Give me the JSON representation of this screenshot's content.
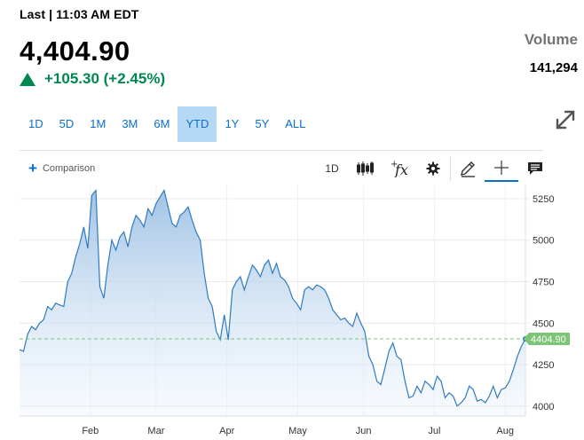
{
  "header": {
    "last_label": "Last | 11:03 AM EDT",
    "price": "4,404.90",
    "change": "+105.30 (+2.45%)",
    "volume_label": "Volume",
    "volume_value": "141,294"
  },
  "ranges": [
    {
      "label": "1D",
      "active": false
    },
    {
      "label": "5D",
      "active": false
    },
    {
      "label": "1M",
      "active": false
    },
    {
      "label": "3M",
      "active": false
    },
    {
      "label": "6M",
      "active": false
    },
    {
      "label": "YTD",
      "active": true
    },
    {
      "label": "1Y",
      "active": false
    },
    {
      "label": "5Y",
      "active": false
    },
    {
      "label": "ALL",
      "active": false
    }
  ],
  "toolbar": {
    "comparison_label": "Comparison",
    "interval_label": "1D",
    "icons": [
      "candlestick-icon",
      "function-icon",
      "gear-icon",
      "pencil-icon",
      "crosshair-icon",
      "comment-icon"
    ]
  },
  "colors": {
    "accent": "#0a6ecc",
    "positive": "#008751",
    "line": "#2f7bbf",
    "last_price_tag": "#7cc576"
  },
  "chart_data": {
    "type": "area",
    "x_labels": [
      "Feb",
      "Mar",
      "Apr",
      "May",
      "Jun",
      "Jul",
      "Aug"
    ],
    "y_ticks": [
      4000,
      4250,
      4500,
      4750,
      5000,
      5250
    ],
    "ylim": [
      3940,
      5330
    ],
    "last_value_label": "4404.90",
    "last_value": 4404.9,
    "values": [
      4340,
      4330,
      4430,
      4480,
      4460,
      4500,
      4520,
      4600,
      4580,
      4620,
      4610,
      4600,
      4750,
      4800,
      4900,
      4980,
      5080,
      4950,
      5270,
      5300,
      4720,
      4650,
      4850,
      5000,
      4940,
      5020,
      5050,
      4960,
      5080,
      5150,
      5120,
      5080,
      5190,
      5150,
      5220,
      5260,
      5300,
      5200,
      5100,
      5080,
      5150,
      5170,
      5200,
      5120,
      5050,
      5000,
      4800,
      4650,
      4600,
      4450,
      4400,
      4550,
      4400,
      4700,
      4750,
      4780,
      4700,
      4780,
      4850,
      4820,
      4780,
      4850,
      4880,
      4800,
      4860,
      4780,
      4760,
      4720,
      4650,
      4620,
      4580,
      4700,
      4720,
      4700,
      4730,
      4720,
      4700,
      4650,
      4580,
      4550,
      4520,
      4530,
      4500,
      4480,
      4560,
      4500,
      4450,
      4300,
      4250,
      4150,
      4130,
      4230,
      4330,
      4380,
      4300,
      4280,
      4150,
      4050,
      4060,
      4120,
      4080,
      4150,
      4130,
      4100,
      4180,
      4150,
      4050,
      4080,
      4060,
      4000,
      4020,
      4050,
      4120,
      4100,
      4030,
      4040,
      4020,
      4060,
      4120,
      4050,
      4100,
      4110,
      4150,
      4220,
      4300,
      4360,
      4404.9
    ]
  }
}
